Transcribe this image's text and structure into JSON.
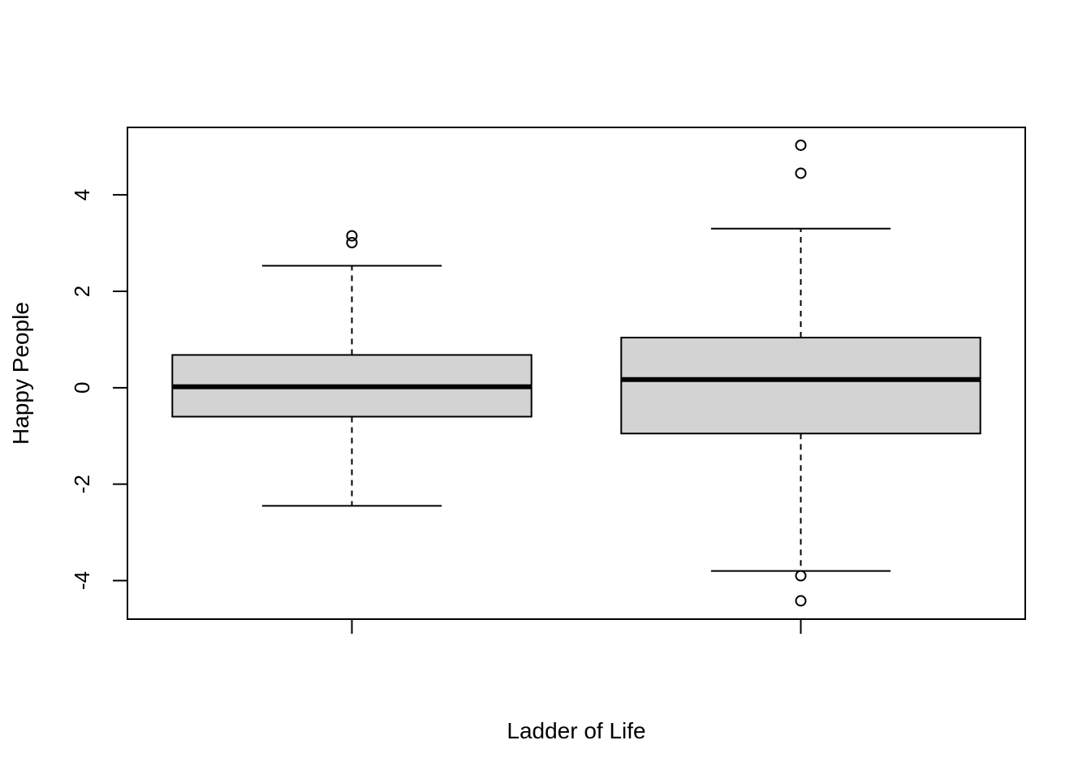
{
  "chart_data": {
    "type": "boxplot",
    "title": "",
    "xlabel": "Ladder of Life",
    "ylabel": "Happy People",
    "yticks": [
      -4,
      -2,
      0,
      2,
      4
    ],
    "ylim": [
      -4.8,
      5.4
    ],
    "grid": false,
    "box_fill": "#d3d3d3",
    "line_color": "#000000",
    "boxes": [
      {
        "q1": -0.6,
        "median": 0.02,
        "q3": 0.68,
        "whisker_low": -2.45,
        "whisker_high": 2.53,
        "outliers": [
          3.15,
          3.01
        ]
      },
      {
        "q1": -0.95,
        "median": 0.17,
        "q3": 1.04,
        "whisker_low": -3.8,
        "whisker_high": 3.3,
        "outliers": [
          5.03,
          4.45,
          -3.9,
          -4.42
        ]
      }
    ]
  }
}
